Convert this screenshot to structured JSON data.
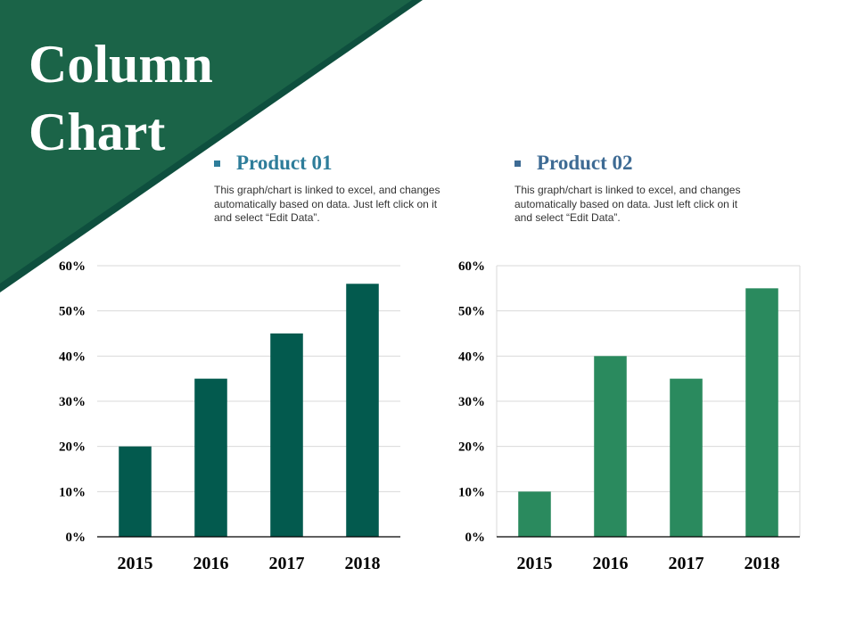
{
  "page": {
    "title_line1": "Column",
    "title_line2": "Chart"
  },
  "colors": {
    "banner_dark": "#1B6448",
    "banner_edge": "#0E4F3E",
    "series1": "#035A4E",
    "series2": "#2A8A5E",
    "product1_title": "#2E7D9A",
    "product2_title": "#3E6B94"
  },
  "products": [
    {
      "title": "Product 01",
      "description": "This graph/chart is linked to excel, and changes automatically based on data. Just left click on it and select “Edit Data”."
    },
    {
      "title": "Product 02",
      "description": "This graph/chart is linked to excel, and changes automatically based on data. Just left click on it and select “Edit Data”."
    }
  ],
  "chart_data": [
    {
      "type": "bar",
      "title": "Product 01",
      "categories": [
        "2015",
        "2016",
        "2017",
        "2018"
      ],
      "values": [
        20,
        35,
        45,
        56
      ],
      "ylim": [
        0,
        60
      ],
      "yticks": [
        "0%",
        "10%",
        "20%",
        "30%",
        "40%",
        "50%",
        "60%"
      ],
      "xlabel": "",
      "ylabel": "",
      "grid": true,
      "color": "#035A4E"
    },
    {
      "type": "bar",
      "title": "Product 02",
      "categories": [
        "2015",
        "2016",
        "2017",
        "2018"
      ],
      "values": [
        10,
        40,
        35,
        55
      ],
      "ylim": [
        0,
        60
      ],
      "yticks": [
        "0%",
        "10%",
        "20%",
        "30%",
        "40%",
        "50%",
        "60%"
      ],
      "xlabel": "",
      "ylabel": "",
      "grid": true,
      "color": "#2A8A5E"
    }
  ]
}
